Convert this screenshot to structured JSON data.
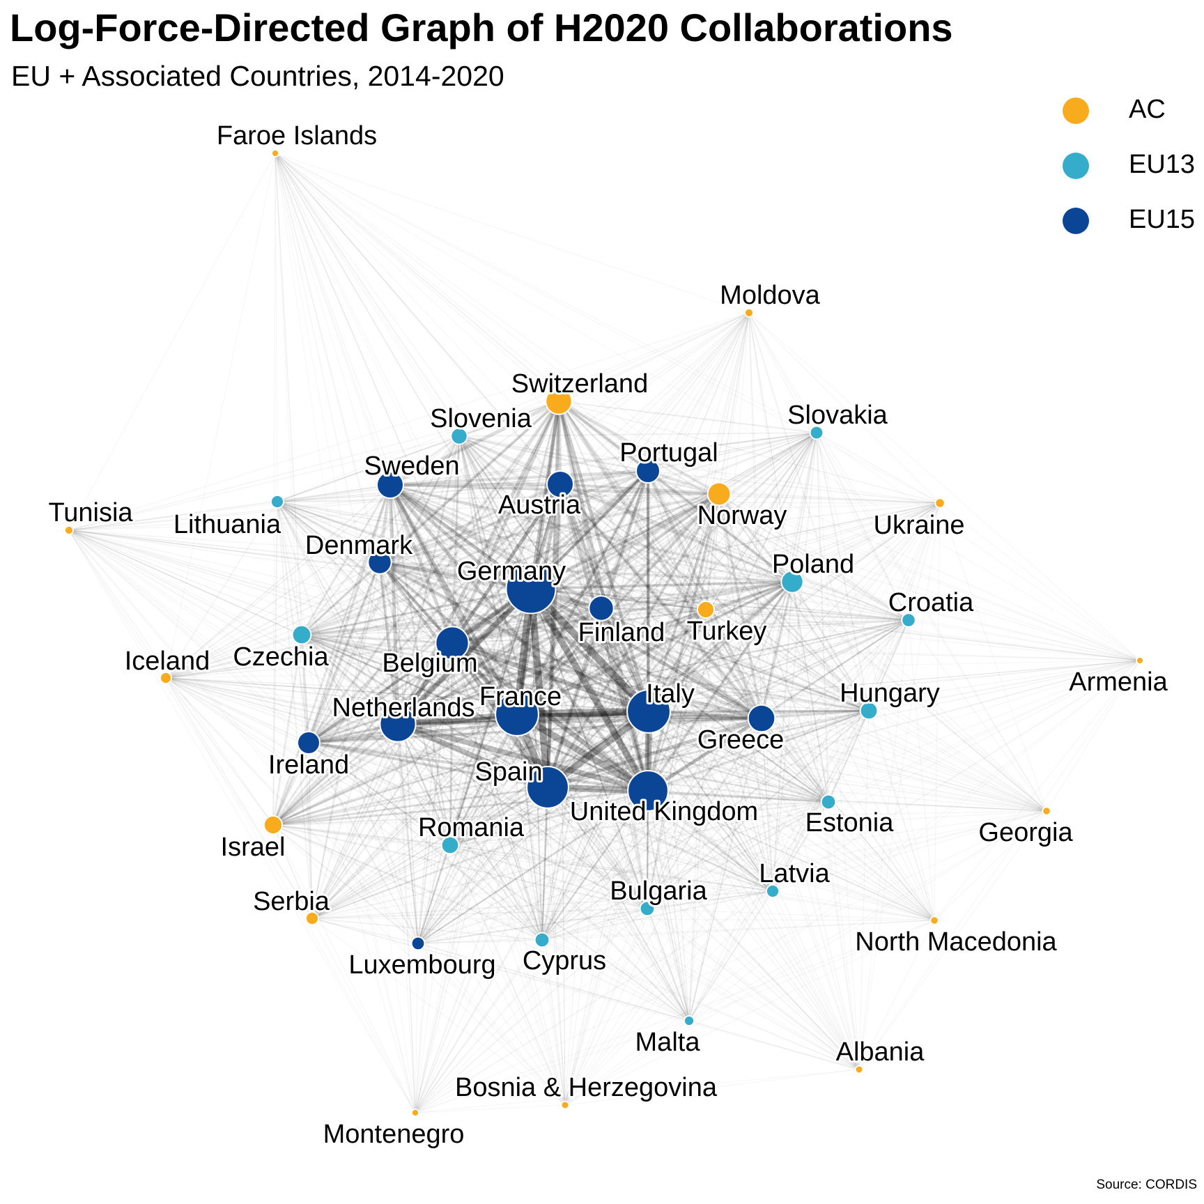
{
  "title": "Log-Force-Directed Graph of H2020 Collaborations",
  "subtitle": "EU + Associated Countries, 2014-2020",
  "source": "Source: CORDIS",
  "colors": {
    "AC": "#F8AB1C",
    "EU13": "#36ACCB",
    "EU15": "#0B4596",
    "edge": "#000000",
    "background": "#FFFFFF"
  },
  "legend": [
    {
      "group": "AC",
      "label": "AC"
    },
    {
      "group": "EU13",
      "label": "EU13"
    },
    {
      "group": "EU15",
      "label": "EU15"
    }
  ],
  "nodes": [
    {
      "id": "germany",
      "label": "Germany",
      "group": "EU15",
      "weight": 10
    },
    {
      "id": "france",
      "label": "France",
      "group": "EU15",
      "weight": 8.6
    },
    {
      "id": "italy",
      "label": "Italy",
      "group": "EU15",
      "weight": 8.6
    },
    {
      "id": "spain",
      "label": "Spain",
      "group": "EU15",
      "weight": 8.3
    },
    {
      "id": "uk",
      "label": "United Kingdom",
      "group": "EU15",
      "weight": 8.0
    },
    {
      "id": "netherlands",
      "label": "Netherlands",
      "group": "EU15",
      "weight": 7.0
    },
    {
      "id": "belgium",
      "label": "Belgium",
      "group": "EU15",
      "weight": 6.4
    },
    {
      "id": "greece",
      "label": "Greece",
      "group": "EU15",
      "weight": 5.1
    },
    {
      "id": "finland",
      "label": "Finland",
      "group": "EU15",
      "weight": 4.6
    },
    {
      "id": "austria",
      "label": "Austria",
      "group": "EU15",
      "weight": 5.0
    },
    {
      "id": "sweden",
      "label": "Sweden",
      "group": "EU15",
      "weight": 5.0
    },
    {
      "id": "portugal",
      "label": "Portugal",
      "group": "EU15",
      "weight": 4.4
    },
    {
      "id": "denmark",
      "label": "Denmark",
      "group": "EU15",
      "weight": 4.3
    },
    {
      "id": "ireland",
      "label": "Ireland",
      "group": "EU15",
      "weight": 4.1
    },
    {
      "id": "luxembourg",
      "label": "Luxembourg",
      "group": "EU15",
      "weight": 2.1
    },
    {
      "id": "switzerland",
      "label": "Switzerland",
      "group": "AC",
      "weight": 4.9
    },
    {
      "id": "norway",
      "label": "Norway",
      "group": "AC",
      "weight": 4.2
    },
    {
      "id": "israel",
      "label": "Israel",
      "group": "AC",
      "weight": 3.2
    },
    {
      "id": "turkey",
      "label": "Turkey",
      "group": "AC",
      "weight": 2.9
    },
    {
      "id": "serbia",
      "label": "Serbia",
      "group": "AC",
      "weight": 2.0
    },
    {
      "id": "iceland",
      "label": "Iceland",
      "group": "AC",
      "weight": 1.7
    },
    {
      "id": "ukraine",
      "label": "Ukraine",
      "group": "AC",
      "weight": 1.3
    },
    {
      "id": "moldova",
      "label": "Moldova",
      "group": "AC",
      "weight": 1.1
    },
    {
      "id": "tunisia",
      "label": "Tunisia",
      "group": "AC",
      "weight": 1.1
    },
    {
      "id": "faroe",
      "label": "Faroe Islands",
      "group": "AC",
      "weight": 0.8
    },
    {
      "id": "armenia",
      "label": "Armenia",
      "group": "AC",
      "weight": 0.8
    },
    {
      "id": "georgia",
      "label": "Georgia",
      "group": "AC",
      "weight": 1.0
    },
    {
      "id": "northmacedonia",
      "label": "North Macedonia",
      "group": "AC",
      "weight": 1.0
    },
    {
      "id": "albania",
      "label": "Albania",
      "group": "AC",
      "weight": 0.9
    },
    {
      "id": "bosnia",
      "label": "Bosnia & Herzegovina",
      "group": "AC",
      "weight": 0.9
    },
    {
      "id": "montenegro",
      "label": "Montenegro",
      "group": "AC",
      "weight": 0.8
    },
    {
      "id": "poland",
      "label": "Poland",
      "group": "EU13",
      "weight": 4.0
    },
    {
      "id": "czechia",
      "label": "Czechia",
      "group": "EU13",
      "weight": 3.3
    },
    {
      "id": "hungary",
      "label": "Hungary",
      "group": "EU13",
      "weight": 3.0
    },
    {
      "id": "romania",
      "label": "Romania",
      "group": "EU13",
      "weight": 3.0
    },
    {
      "id": "slovenia",
      "label": "Slovenia",
      "group": "EU13",
      "weight": 2.8
    },
    {
      "id": "estonia",
      "label": "Estonia",
      "group": "EU13",
      "weight": 2.4
    },
    {
      "id": "bulgaria",
      "label": "Bulgaria",
      "group": "EU13",
      "weight": 2.4
    },
    {
      "id": "cyprus",
      "label": "Cyprus",
      "group": "EU13",
      "weight": 2.4
    },
    {
      "id": "croatia",
      "label": "Croatia",
      "group": "EU13",
      "weight": 2.2
    },
    {
      "id": "slovakia",
      "label": "Slovakia",
      "group": "EU13",
      "weight": 2.1
    },
    {
      "id": "lithuania",
      "label": "Lithuania",
      "group": "EU13",
      "weight": 2.0
    },
    {
      "id": "latvia",
      "label": "Latvia",
      "group": "EU13",
      "weight": 2.0
    },
    {
      "id": "malta",
      "label": "Malta",
      "group": "EU13",
      "weight": 1.4
    }
  ]
}
